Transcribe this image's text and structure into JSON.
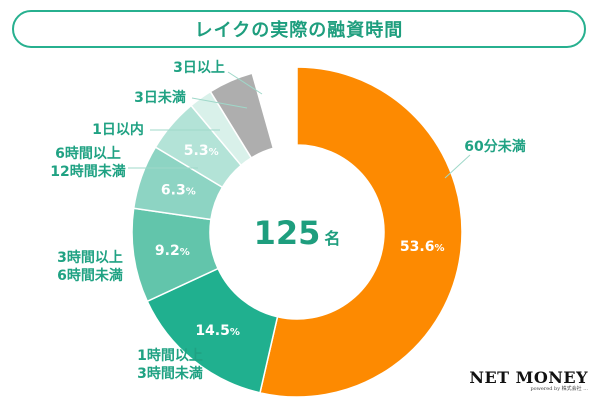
{
  "title": "レイクの実際の融資時間",
  "center": {
    "value": "125",
    "unit": "名"
  },
  "brand": {
    "name": "NET MONEY",
    "sub": "powered by 株式会社 ..."
  },
  "chart_data": {
    "type": "pie",
    "variant": "donut",
    "title": "レイクの実際の融資時間",
    "total": 125,
    "unit_suffix": "%",
    "slices": [
      {
        "label": "60分未満",
        "lines": [
          "60分未満"
        ],
        "value": 53.6,
        "color": "#fd8a01",
        "labelColor": "#fd8a01"
      },
      {
        "label": "1時間以上3時間未満",
        "lines": [
          "1時間以上",
          "3時間未満"
        ],
        "value": 14.5,
        "color": "#20b08f",
        "labelColor": "#20a283"
      },
      {
        "label": "3時間以上6時間未満",
        "lines": [
          "3時間以上",
          "6時間未満"
        ],
        "value": 9.2,
        "color": "#62c5ab",
        "labelColor": "#20a283"
      },
      {
        "label": "6時間以上12時間未満",
        "lines": [
          "6時間以上",
          "12時間未満"
        ],
        "value": 6.3,
        "color": "#8dd4c3",
        "labelColor": "#20a283"
      },
      {
        "label": "1日以内",
        "lines": [
          "1日以内"
        ],
        "value": 5.3,
        "color": "#b3e3d7",
        "labelColor": "#20a283"
      },
      {
        "label": "3日未満",
        "lines": [
          "3日未満"
        ],
        "value": null,
        "color": "#d9f1ea",
        "labelColor": "#20a283"
      },
      {
        "label": "3日以上",
        "lines": [
          "3日以上"
        ],
        "value": null,
        "color": "#aeaeae",
        "labelColor": "#20a283"
      }
    ]
  }
}
